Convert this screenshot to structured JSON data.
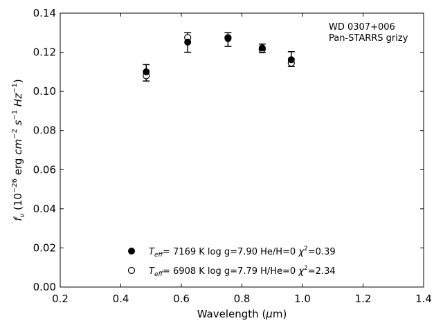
{
  "chart_data": {
    "type": "scatter",
    "title": "",
    "xlabel": "Wavelength (μm)",
    "ylabel": "fν (10⁻²⁶ erg cm⁻² s⁻¹ Hz⁻¹)",
    "xlim": [
      0.2,
      1.4
    ],
    "ylim": [
      0.0,
      0.14
    ],
    "x_ticks": [
      0.2,
      0.4,
      0.6,
      0.8,
      1.0,
      1.2,
      1.4
    ],
    "x_tick_labels": [
      "0.2",
      "0.4",
      "0.6",
      "0.8",
      "1.0",
      "1.2",
      "1.4"
    ],
    "y_ticks": [
      0.0,
      0.02,
      0.04,
      0.06,
      0.08,
      0.1,
      0.12,
      0.14
    ],
    "y_tick_labels": [
      "0.00",
      "0.02",
      "0.04",
      "0.06",
      "0.08",
      "0.10",
      "0.12",
      "0.14"
    ],
    "grid": false,
    "annotation": {
      "line1": "WD 0307+006",
      "line2": "Pan-STARRS grizy"
    },
    "observed": {
      "name": "Pan-STARRS grizy",
      "x": [
        0.484,
        0.621,
        0.754,
        0.867,
        0.963
      ],
      "y": [
        0.1095,
        0.125,
        0.1265,
        0.122,
        0.1165
      ],
      "yerr": [
        0.0042,
        0.005,
        0.0035,
        0.0022,
        0.0038
      ]
    },
    "series": [
      {
        "name": "Teff= 7169 K log g=7.90 He/H=0 χ²=0.39",
        "marker": "filled-circle",
        "x": [
          0.484,
          0.621,
          0.754,
          0.867,
          0.963
        ],
        "y": [
          0.11,
          0.1252,
          0.127,
          0.1222,
          0.1162
        ]
      },
      {
        "name": "Teff= 6908 K log g=7.79 H/He=0 χ²=2.34",
        "marker": "open-circle",
        "x": [
          0.484,
          0.621,
          0.754,
          0.867,
          0.963
        ],
        "y": [
          0.108,
          0.1275,
          0.1275,
          0.1215,
          0.1145
        ]
      }
    ],
    "legend": {
      "placement": "lower-center",
      "entries": [
        {
          "teff": "7169 K",
          "logg": "log g=7.90",
          "comp": "He/H=0",
          "chi2": "=0.39"
        },
        {
          "teff": "6908 K",
          "logg": "log g=7.79",
          "comp": "H/He=0",
          "chi2": "=2.34"
        }
      ]
    },
    "colors": {
      "marker": "#000000",
      "axes": "#000000",
      "background": "#ffffff"
    }
  }
}
